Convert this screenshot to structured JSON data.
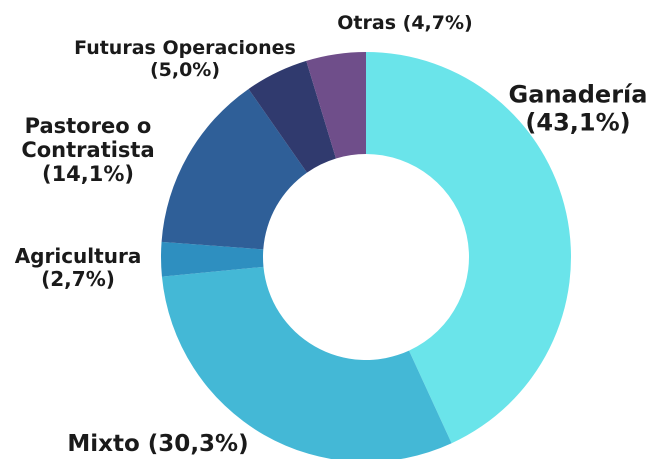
{
  "chart_data": {
    "type": "donut",
    "categories": [
      "Ganadería",
      "Mixto",
      "Agricultura",
      "Pastoreo o Contratista",
      "Futuras Operaciones",
      "Otras"
    ],
    "values": [
      43.1,
      30.3,
      2.7,
      14.1,
      5.0,
      4.7
    ],
    "value_labels": [
      "(43,1%)",
      "(30,3%)",
      "(2,7%)",
      "(14,1%)",
      "(5,0%)",
      "(4,7%)"
    ],
    "colors": [
      "#6ae4ea",
      "#44b8d6",
      "#2e8fc0",
      "#2f5f98",
      "#303a6e",
      "#6f4e8a"
    ]
  }
}
